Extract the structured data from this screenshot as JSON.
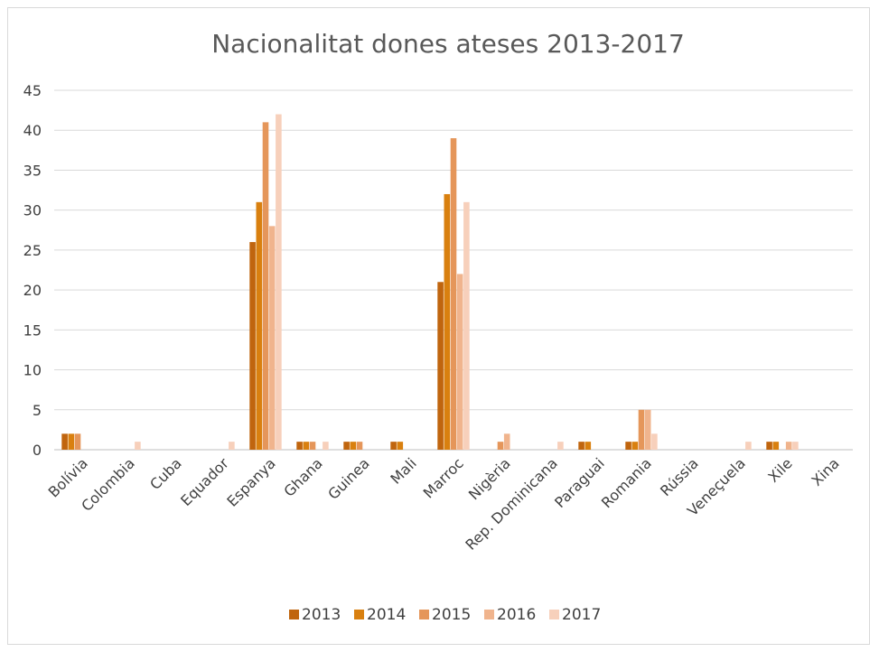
{
  "chart_data": {
    "type": "bar",
    "title": "Nacionalitat dones ateses 2013-2017",
    "xlabel": "",
    "ylabel": "",
    "ylim": [
      0,
      45
    ],
    "yticks": [
      "0",
      "5",
      "10",
      "15",
      "20",
      "25",
      "30",
      "35",
      "40",
      "45"
    ],
    "grid": true,
    "legend_position": "bottom",
    "categories": [
      "Bolívia",
      "Colombia",
      "Cuba",
      "Equador",
      "Espanya",
      "Ghana",
      "Guinea",
      "Mali",
      "Marroc",
      "Nigèria",
      "Rep. Dominicana",
      "Paraguai",
      "Romania",
      "Rússia",
      "Veneçuela",
      "Xile",
      "Xina"
    ],
    "series": [
      {
        "name": "2013",
        "color": "#c0650e",
        "values": [
          2,
          0,
          0,
          0,
          26,
          1,
          1,
          1,
          21,
          0,
          0,
          1,
          1,
          0,
          0,
          1,
          0
        ]
      },
      {
        "name": "2014",
        "color": "#d9800f",
        "values": [
          2,
          0,
          0,
          0,
          31,
          1,
          1,
          1,
          32,
          0,
          0,
          1,
          1,
          0,
          0,
          1,
          0
        ]
      },
      {
        "name": "2015",
        "color": "#e5965a",
        "values": [
          2,
          0,
          0,
          0,
          41,
          1,
          1,
          0,
          39,
          1,
          0,
          0,
          5,
          0,
          0,
          0,
          0
        ]
      },
      {
        "name": "2016",
        "color": "#f0b48d",
        "values": [
          0,
          0,
          0,
          0,
          28,
          0,
          0,
          0,
          22,
          2,
          0,
          0,
          5,
          0,
          0,
          1,
          0
        ]
      },
      {
        "name": "2017",
        "color": "#f7d0bb",
        "values": [
          0,
          1,
          0,
          1,
          42,
          1,
          0,
          0,
          31,
          0,
          1,
          0,
          2,
          0,
          1,
          1,
          0
        ]
      }
    ]
  }
}
